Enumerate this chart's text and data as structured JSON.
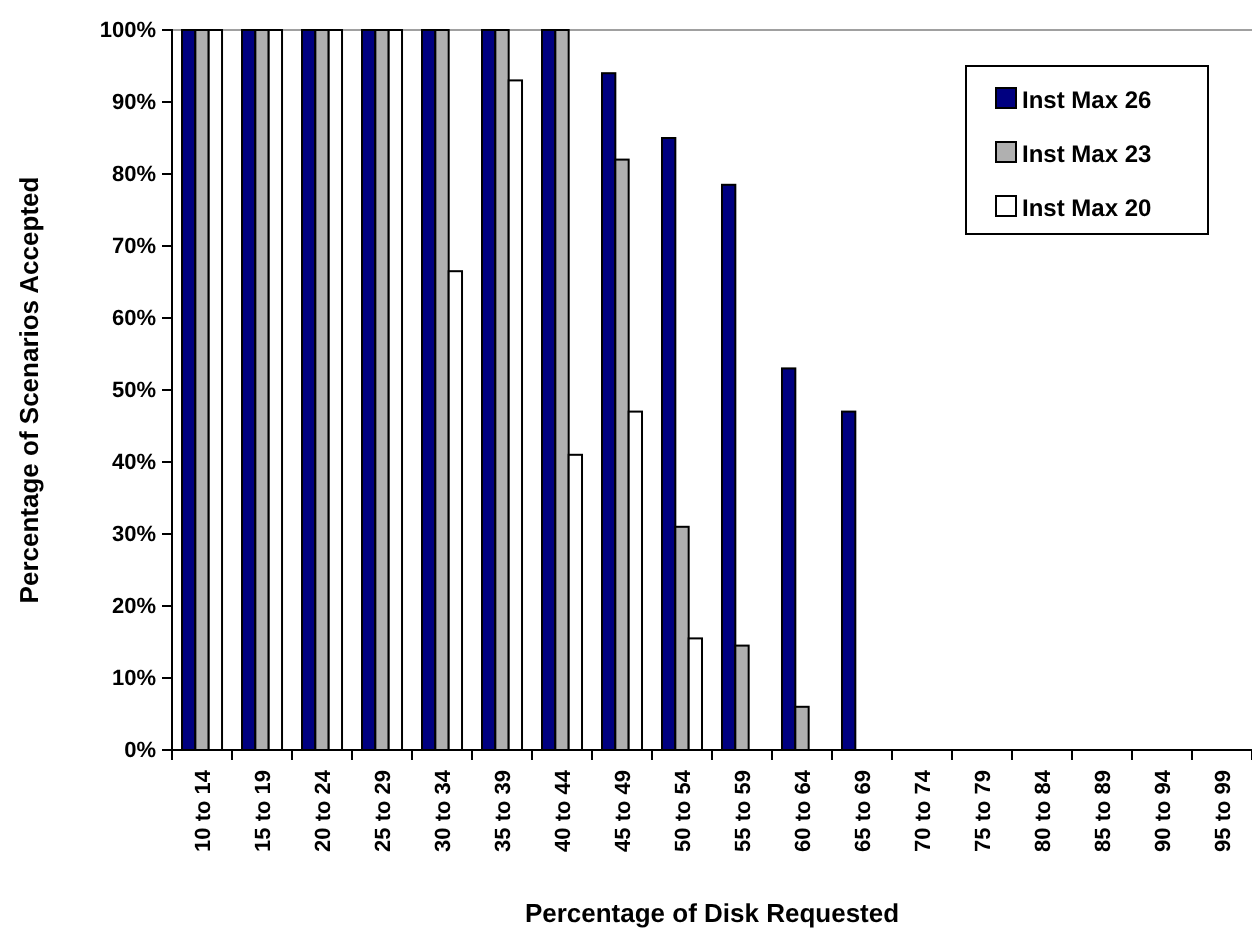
{
  "chart_data": {
    "type": "bar",
    "xlabel": "Percentage of Disk Requested",
    "ylabel": "Percentage of Scenarios Accepted",
    "categories": [
      "10 to 14",
      "15 to 19",
      "20 to 24",
      "25 to 29",
      "30 to 34",
      "35 to 39",
      "40 to 44",
      "45 to 49",
      "50 to 54",
      "55 to 59",
      "60 to 64",
      "65 to 69",
      "70 to 74",
      "75 to 79",
      "80 to 84",
      "85 to 89",
      "90 to 94",
      "95 to 99"
    ],
    "series": [
      {
        "name": "Inst Max 26",
        "color": "#000080",
        "values": [
          100,
          100,
          100,
          100,
          100,
          100,
          100,
          94,
          85,
          78.5,
          53,
          47,
          0,
          0,
          0,
          0,
          0,
          0
        ]
      },
      {
        "name": "Inst Max 23",
        "color": "#b0b0b0",
        "values": [
          100,
          100,
          100,
          100,
          100,
          100,
          100,
          82,
          31,
          14.5,
          6,
          0,
          0,
          0,
          0,
          0,
          0,
          0
        ]
      },
      {
        "name": "Inst Max 20",
        "color": "#ffffff",
        "values": [
          100,
          100,
          100,
          100,
          66.5,
          93,
          41,
          47,
          15.5,
          0,
          0,
          0,
          0,
          0,
          0,
          0,
          0,
          0
        ]
      }
    ],
    "ylim": [
      0,
      100
    ],
    "yticks": [
      {
        "value": 0,
        "label": "0%"
      },
      {
        "value": 10,
        "label": "10%"
      },
      {
        "value": 20,
        "label": "20%"
      },
      {
        "value": 30,
        "label": "30%"
      },
      {
        "value": 40,
        "label": "40%"
      },
      {
        "value": 50,
        "label": "50%"
      },
      {
        "value": 60,
        "label": "60%"
      },
      {
        "value": 70,
        "label": "70%"
      },
      {
        "value": 80,
        "label": "80%"
      },
      {
        "value": 90,
        "label": "90%"
      },
      {
        "value": 100,
        "label": "100%"
      }
    ],
    "legend": "top right"
  }
}
